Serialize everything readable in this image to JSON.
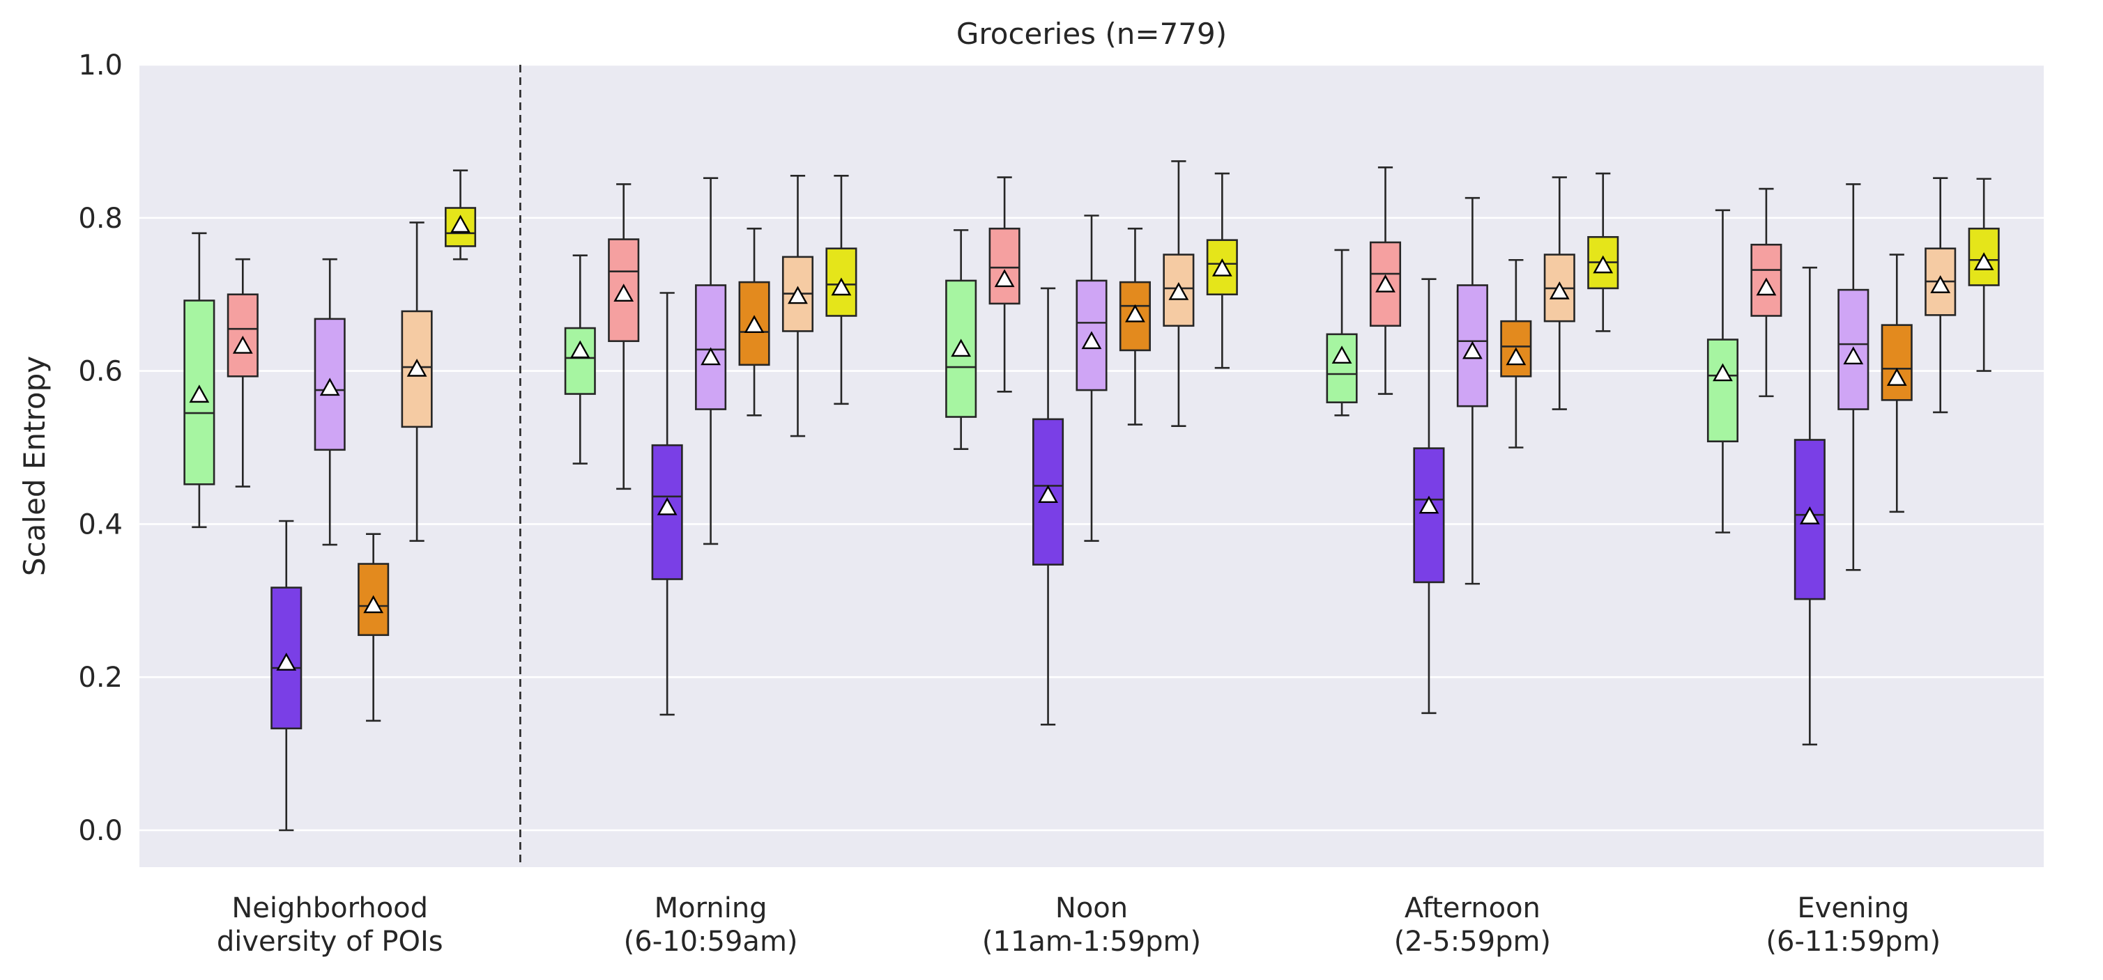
{
  "chart_data": {
    "type": "box",
    "title": "Groceries (n=779)",
    "ylabel": "Scaled Entropy",
    "xlabel": "",
    "ylim": [
      -0.05,
      1.0
    ],
    "yticks": [
      "0.0",
      "0.2",
      "0.4",
      "0.6",
      "0.8",
      "1.0"
    ],
    "ytick_values": [
      0.0,
      0.2,
      0.4,
      0.6,
      0.8,
      1.0
    ],
    "grid": true,
    "divider_after_category": 0,
    "series_colors": [
      "#a6f5a1",
      "#f5a0a0",
      "#7a3fe6",
      "#cfa5f5",
      "#e38a1e",
      "#f5cba3",
      "#e5e51a"
    ],
    "categories": [
      {
        "label_line1": "Neighborhood",
        "label_line2": "diversity of POIs",
        "boxes": [
          {
            "q1": 0.452,
            "median": 0.545,
            "q3": 0.692,
            "whisker_low": 0.396,
            "whisker_high": 0.78,
            "mean": 0.568
          },
          {
            "q1": 0.593,
            "median": 0.655,
            "q3": 0.7,
            "whisker_low": 0.449,
            "whisker_high": 0.746,
            "mean": 0.632
          },
          {
            "q1": 0.133,
            "median": 0.212,
            "q3": 0.317,
            "whisker_low": 0.0,
            "whisker_high": 0.404,
            "mean": 0.218
          },
          {
            "q1": 0.497,
            "median": 0.575,
            "q3": 0.668,
            "whisker_low": 0.373,
            "whisker_high": 0.746,
            "mean": 0.577
          },
          {
            "q1": 0.255,
            "median": 0.293,
            "q3": 0.348,
            "whisker_low": 0.143,
            "whisker_high": 0.387,
            "mean": 0.293
          },
          {
            "q1": 0.527,
            "median": 0.605,
            "q3": 0.678,
            "whisker_low": 0.378,
            "whisker_high": 0.794,
            "mean": 0.602
          },
          {
            "q1": 0.763,
            "median": 0.78,
            "q3": 0.813,
            "whisker_low": 0.746,
            "whisker_high": 0.862,
            "mean": 0.79
          }
        ]
      },
      {
        "label_line1": "Morning",
        "label_line2": "(6-10:59am)",
        "boxes": [
          {
            "q1": 0.57,
            "median": 0.617,
            "q3": 0.656,
            "whisker_low": 0.479,
            "whisker_high": 0.751,
            "mean": 0.626
          },
          {
            "q1": 0.639,
            "median": 0.73,
            "q3": 0.772,
            "whisker_low": 0.446,
            "whisker_high": 0.844,
            "mean": 0.7
          },
          {
            "q1": 0.328,
            "median": 0.436,
            "q3": 0.503,
            "whisker_low": 0.151,
            "whisker_high": 0.702,
            "mean": 0.421
          },
          {
            "q1": 0.55,
            "median": 0.628,
            "q3": 0.712,
            "whisker_low": 0.374,
            "whisker_high": 0.852,
            "mean": 0.617
          },
          {
            "q1": 0.608,
            "median": 0.651,
            "q3": 0.716,
            "whisker_low": 0.542,
            "whisker_high": 0.786,
            "mean": 0.659
          },
          {
            "q1": 0.652,
            "median": 0.701,
            "q3": 0.749,
            "whisker_low": 0.515,
            "whisker_high": 0.855,
            "mean": 0.697
          },
          {
            "q1": 0.672,
            "median": 0.713,
            "q3": 0.76,
            "whisker_low": 0.557,
            "whisker_high": 0.855,
            "mean": 0.708
          }
        ]
      },
      {
        "label_line1": "Noon",
        "label_line2": "(11am-1:59pm)",
        "boxes": [
          {
            "q1": 0.54,
            "median": 0.605,
            "q3": 0.718,
            "whisker_low": 0.498,
            "whisker_high": 0.784,
            "mean": 0.628
          },
          {
            "q1": 0.688,
            "median": 0.735,
            "q3": 0.786,
            "whisker_low": 0.573,
            "whisker_high": 0.853,
            "mean": 0.719
          },
          {
            "q1": 0.347,
            "median": 0.45,
            "q3": 0.537,
            "whisker_low": 0.138,
            "whisker_high": 0.708,
            "mean": 0.437
          },
          {
            "q1": 0.575,
            "median": 0.663,
            "q3": 0.718,
            "whisker_low": 0.378,
            "whisker_high": 0.803,
            "mean": 0.638
          },
          {
            "q1": 0.627,
            "median": 0.685,
            "q3": 0.716,
            "whisker_low": 0.53,
            "whisker_high": 0.786,
            "mean": 0.673
          },
          {
            "q1": 0.659,
            "median": 0.708,
            "q3": 0.752,
            "whisker_low": 0.528,
            "whisker_high": 0.874,
            "mean": 0.702
          },
          {
            "q1": 0.7,
            "median": 0.74,
            "q3": 0.771,
            "whisker_low": 0.604,
            "whisker_high": 0.858,
            "mean": 0.733
          }
        ]
      },
      {
        "label_line1": "Afternoon",
        "label_line2": "(2-5:59pm)",
        "boxes": [
          {
            "q1": 0.559,
            "median": 0.596,
            "q3": 0.648,
            "whisker_low": 0.542,
            "whisker_high": 0.758,
            "mean": 0.619
          },
          {
            "q1": 0.659,
            "median": 0.727,
            "q3": 0.768,
            "whisker_low": 0.57,
            "whisker_high": 0.866,
            "mean": 0.712
          },
          {
            "q1": 0.324,
            "median": 0.432,
            "q3": 0.499,
            "whisker_low": 0.153,
            "whisker_high": 0.72,
            "mean": 0.423
          },
          {
            "q1": 0.554,
            "median": 0.639,
            "q3": 0.712,
            "whisker_low": 0.322,
            "whisker_high": 0.826,
            "mean": 0.625
          },
          {
            "q1": 0.593,
            "median": 0.632,
            "q3": 0.665,
            "whisker_low": 0.5,
            "whisker_high": 0.745,
            "mean": 0.617
          },
          {
            "q1": 0.665,
            "median": 0.708,
            "q3": 0.752,
            "whisker_low": 0.55,
            "whisker_high": 0.853,
            "mean": 0.703
          },
          {
            "q1": 0.708,
            "median": 0.742,
            "q3": 0.775,
            "whisker_low": 0.652,
            "whisker_high": 0.858,
            "mean": 0.737
          }
        ]
      },
      {
        "label_line1": "Evening",
        "label_line2": "(6-11:59pm)",
        "boxes": [
          {
            "q1": 0.508,
            "median": 0.594,
            "q3": 0.641,
            "whisker_low": 0.389,
            "whisker_high": 0.81,
            "mean": 0.596
          },
          {
            "q1": 0.672,
            "median": 0.732,
            "q3": 0.765,
            "whisker_low": 0.567,
            "whisker_high": 0.838,
            "mean": 0.708
          },
          {
            "q1": 0.302,
            "median": 0.412,
            "q3": 0.51,
            "whisker_low": 0.112,
            "whisker_high": 0.735,
            "mean": 0.409
          },
          {
            "q1": 0.55,
            "median": 0.635,
            "q3": 0.706,
            "whisker_low": 0.34,
            "whisker_high": 0.844,
            "mean": 0.618
          },
          {
            "q1": 0.562,
            "median": 0.603,
            "q3": 0.66,
            "whisker_low": 0.416,
            "whisker_high": 0.752,
            "mean": 0.59
          },
          {
            "q1": 0.673,
            "median": 0.717,
            "q3": 0.76,
            "whisker_low": 0.546,
            "whisker_high": 0.852,
            "mean": 0.711
          },
          {
            "q1": 0.712,
            "median": 0.745,
            "q3": 0.786,
            "whisker_low": 0.6,
            "whisker_high": 0.851,
            "mean": 0.741
          }
        ]
      }
    ]
  }
}
